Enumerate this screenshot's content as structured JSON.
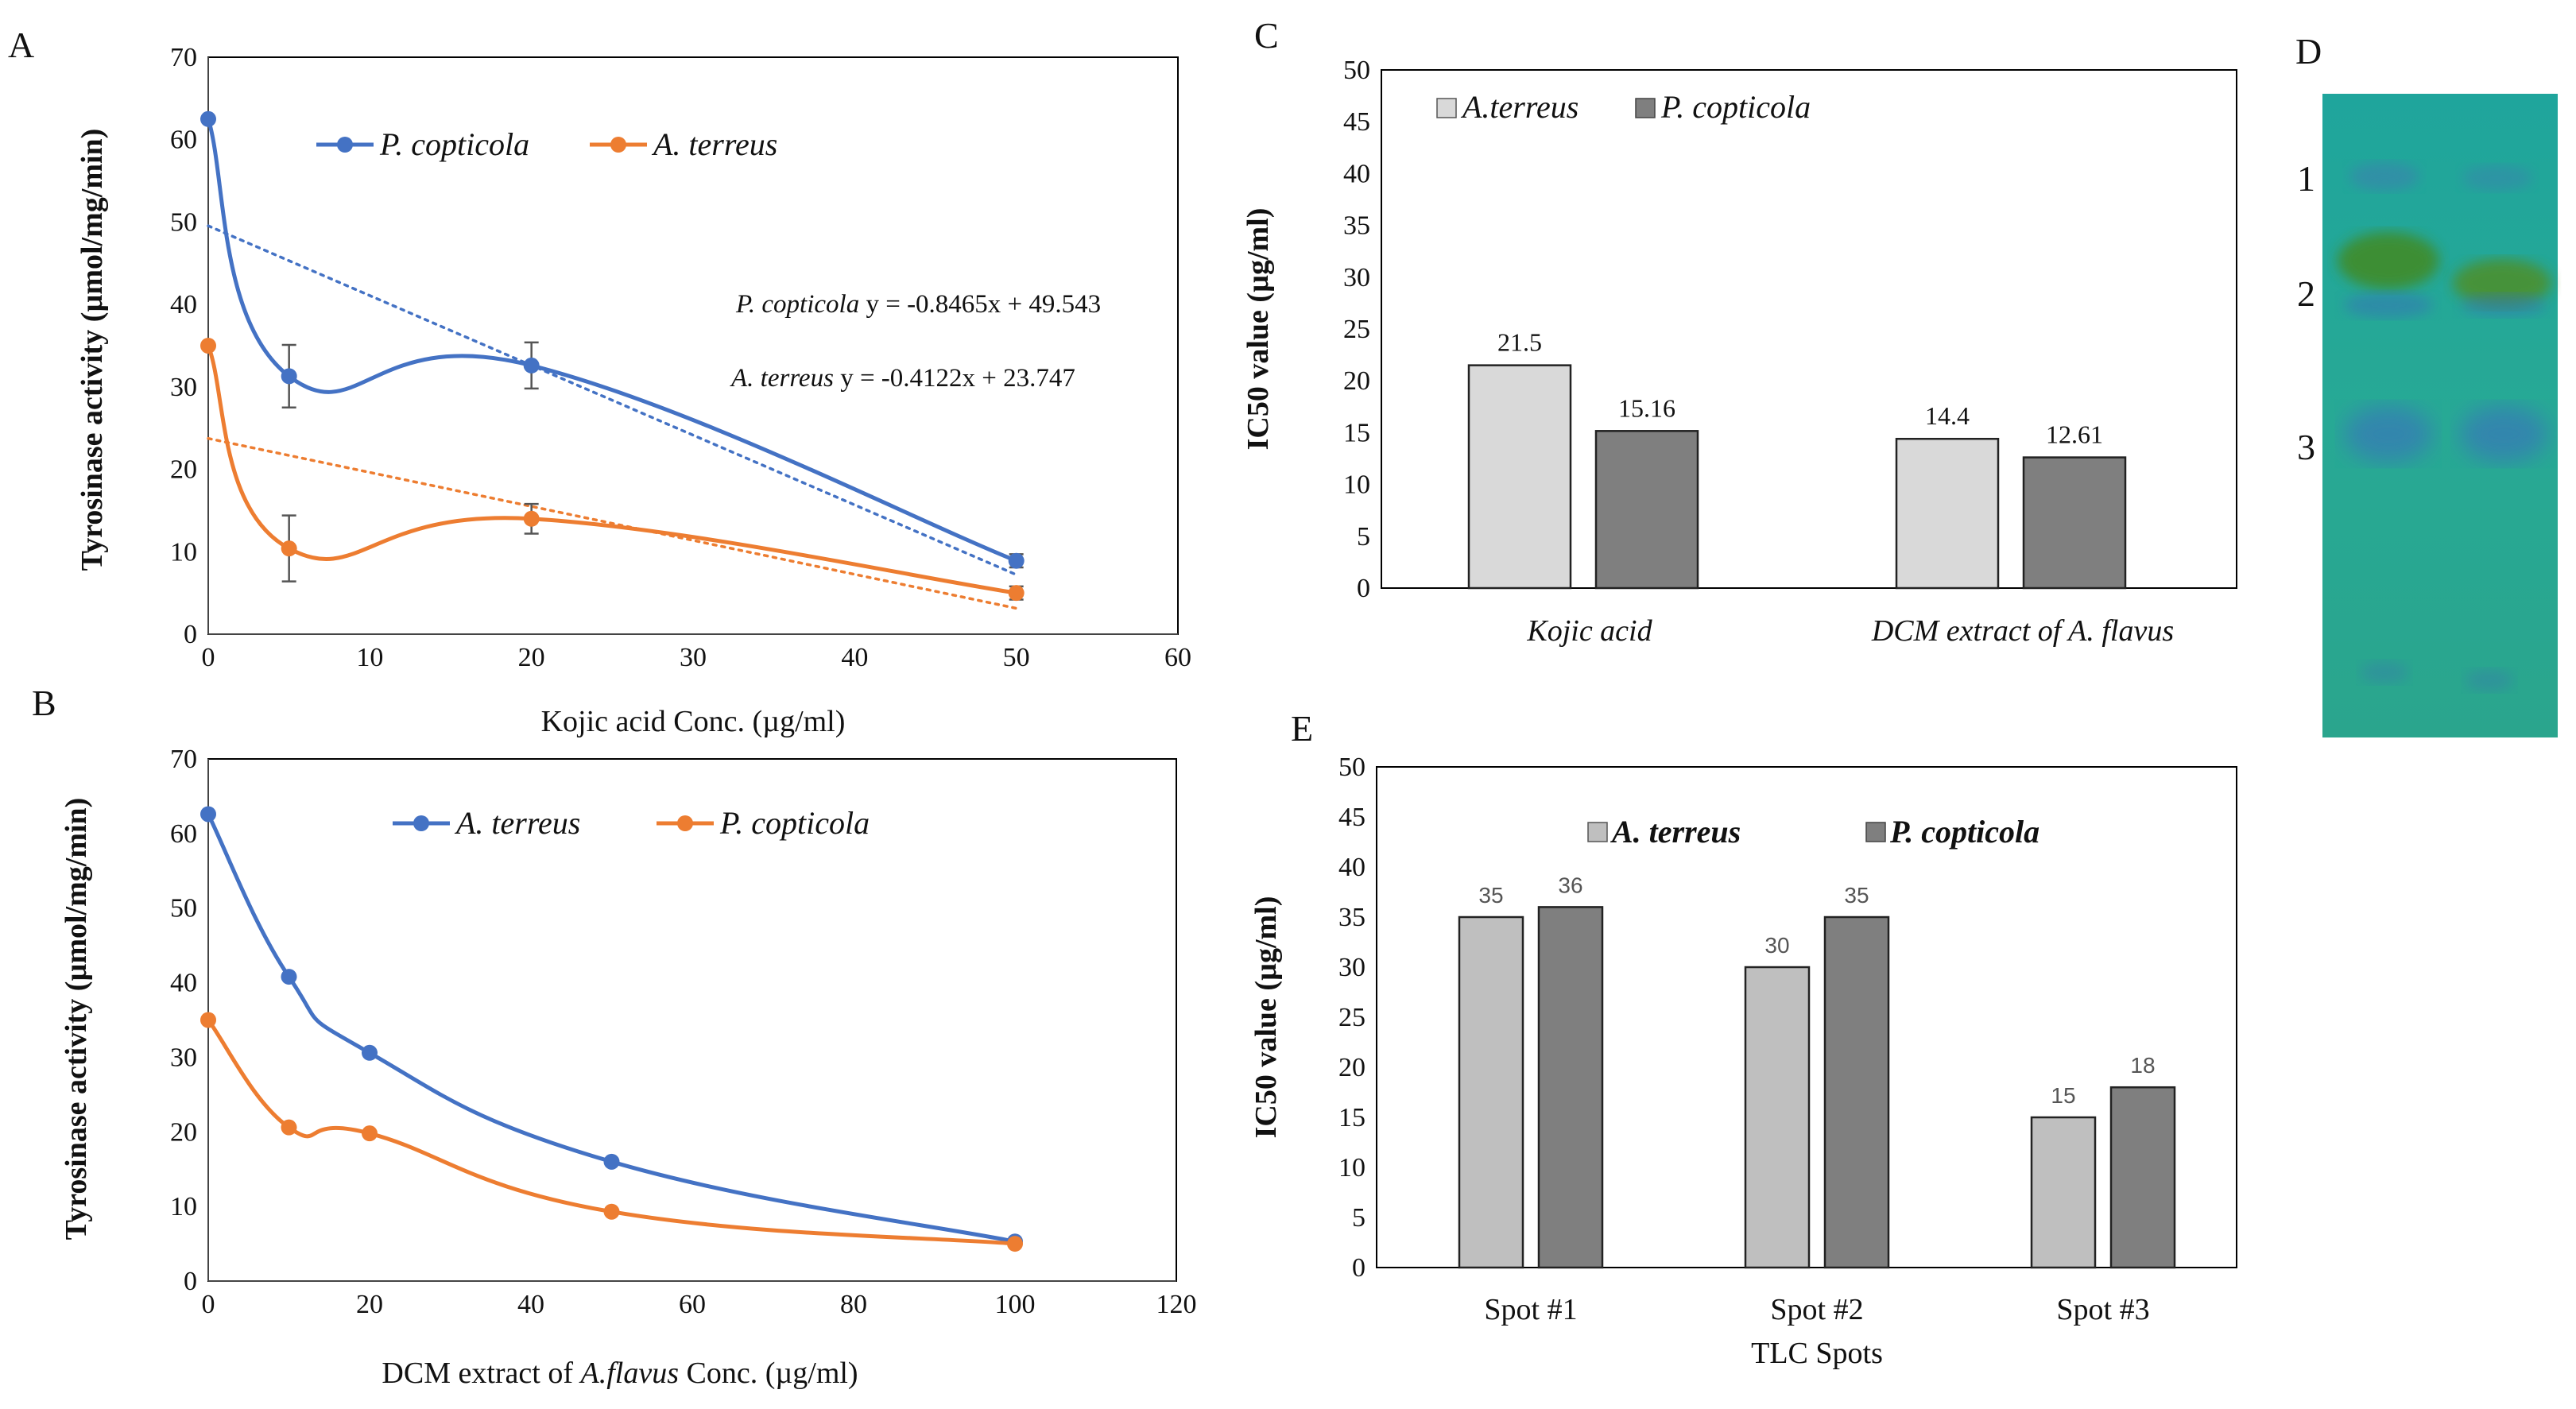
{
  "chart_data": [
    {
      "panel": "A",
      "type": "line",
      "xlabel": "Kojic acid Conc. (µg/ml)",
      "ylabel": "Tyrosinase activity (µmol/mg/min)",
      "xlim": [
        0,
        60
      ],
      "ylim": [
        0,
        70
      ],
      "xticks": [
        "0",
        "10",
        "20",
        "30",
        "40",
        "50",
        "60"
      ],
      "yticks": [
        "0",
        "10",
        "20",
        "30",
        "40",
        "50",
        "60",
        "70"
      ],
      "legend_placement": "top-left",
      "series": [
        {
          "name": "P. copticola",
          "color": "#4472C4",
          "x": [
            0,
            5,
            20,
            50
          ],
          "y": [
            62.5,
            31.3,
            32.6,
            8.9
          ],
          "err": [
            0,
            3.8,
            2.8,
            0.8
          ]
        },
        {
          "name": "A. terreus",
          "color": "#ED7D31",
          "x": [
            0,
            5,
            20,
            50
          ],
          "y": [
            35.0,
            10.4,
            14.0,
            5.0
          ],
          "err": [
            0,
            4.0,
            1.8,
            0.8
          ]
        }
      ],
      "trendlines": [
        {
          "series": "P. copticola",
          "slope": -0.8465,
          "intercept": 49.543,
          "species": "P. copticola",
          "equation": "y = -0.8465x + 49.543"
        },
        {
          "series": "A. terreus",
          "slope": -0.4122,
          "intercept": 23.747,
          "species": "A. terreus",
          "equation": "y = -0.4122x + 23.747"
        }
      ]
    },
    {
      "panel": "B",
      "type": "line",
      "xlabel_pre": "DCM extract of ",
      "xlabel_italic": "A.flavus",
      "xlabel_post": " Conc. (µg/ml)",
      "ylabel": "Tyrosinase activity (µmol/mg/min)",
      "xlim": [
        0,
        120
      ],
      "ylim": [
        0,
        70
      ],
      "xticks": [
        "0",
        "20",
        "40",
        "60",
        "80",
        "100",
        "120"
      ],
      "yticks": [
        "0",
        "10",
        "20",
        "30",
        "40",
        "50",
        "60",
        "70"
      ],
      "legend_placement": "top-center",
      "series": [
        {
          "name": "A. terreus",
          "color": "#4472C4",
          "x": [
            0,
            10,
            20,
            50,
            100
          ],
          "y": [
            62.6,
            40.8,
            30.6,
            16.0,
            5.3
          ]
        },
        {
          "name": "P. copticola",
          "color": "#ED7D31",
          "x": [
            0,
            10,
            20,
            50,
            100
          ],
          "y": [
            35.0,
            20.6,
            19.8,
            9.3,
            5.0
          ]
        }
      ]
    },
    {
      "panel": "C",
      "type": "bar",
      "ylabel": "IC50 value (µg/ml)",
      "ylim": [
        0,
        50
      ],
      "yticks": [
        "0",
        "5",
        "10",
        "15",
        "20",
        "25",
        "30",
        "35",
        "40",
        "45",
        "50"
      ],
      "categories": [
        "Kojic acid",
        "DCM extract of A. flavus"
      ],
      "legend_placement": "top-left",
      "series": [
        {
          "name": "A.terreus",
          "color": "#D9D9D9",
          "values": [
            21.5,
            14.4
          ],
          "labels": [
            "21.5",
            "14.4"
          ]
        },
        {
          "name": "P. copticola",
          "color": "#7F7F7F",
          "values": [
            15.16,
            12.61
          ],
          "labels": [
            "15.16",
            "12.61"
          ]
        }
      ]
    },
    {
      "panel": "E",
      "type": "bar",
      "ylabel": "IC50 value (µg/ml)",
      "xlabel": "TLC Spots",
      "ylim": [
        0,
        50
      ],
      "yticks": [
        "0",
        "5",
        "10",
        "15",
        "20",
        "25",
        "30",
        "35",
        "40",
        "45",
        "50"
      ],
      "categories": [
        "Spot #1",
        "Spot #2",
        "Spot #3"
      ],
      "legend_placement": "top-center",
      "series": [
        {
          "name": "A. terreus",
          "color": "#BFBFBF",
          "values": [
            35,
            30,
            15
          ],
          "labels": [
            "35",
            "30",
            "15"
          ]
        },
        {
          "name": "P. copticola",
          "color": "#7F7F7F",
          "values": [
            36,
            35,
            18
          ],
          "labels": [
            "36",
            "35",
            "18"
          ]
        }
      ]
    }
  ],
  "panels": {
    "a": "A",
    "b": "B",
    "c": "C",
    "d": "D",
    "e": "E"
  },
  "tlc": {
    "spot_labels": [
      "1",
      "2",
      "3"
    ],
    "plate_color": "#24A79B"
  }
}
